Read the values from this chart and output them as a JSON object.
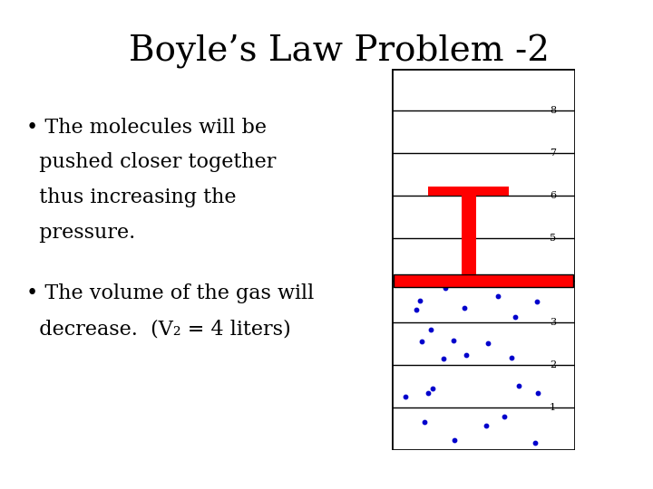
{
  "title": "Boyle’s Law Problem -2",
  "bullet1_line1": "• The molecules will be",
  "bullet1_line2": "  pushed closer together",
  "bullet1_line3": "  thus increasing the",
  "bullet1_line4": "  pressure.",
  "bullet2_line1": "• The volume of the gas will",
  "bullet2_line2": "  decrease.  (V₂ = 4 liters)",
  "title_fontsize": 28,
  "bullet_fontsize": 16,
  "bg_color": "#ffffff",
  "text_color": "#000000",
  "red_fill_color": "#ff0000",
  "blue_dot_color": "#0000cc",
  "line_color": "#000000",
  "piston_level": 4,
  "num_sections": 9
}
